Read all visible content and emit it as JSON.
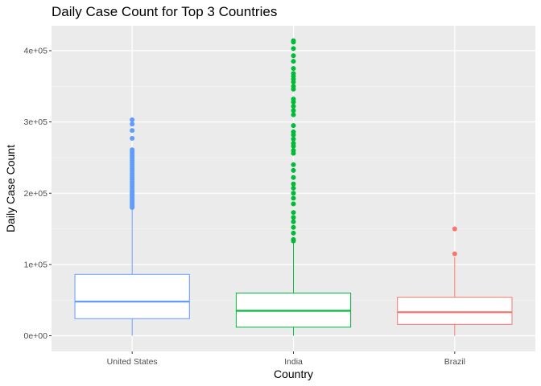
{
  "chart_data": {
    "type": "boxplot",
    "title": "Daily Case Count for Top 3 Countries",
    "xlabel": "Country",
    "ylabel": "Daily Case Count",
    "ylim": [
      -22000,
      435000
    ],
    "y_ticks": [
      0,
      100000,
      200000,
      300000,
      400000
    ],
    "y_tick_labels": [
      "0e+00",
      "1e+05",
      "2e+05",
      "3e+05",
      "4e+05"
    ],
    "grid": true,
    "legend": "none",
    "categories": [
      "United States",
      "India",
      "Brazil"
    ],
    "series": [
      {
        "category": "United States",
        "color": "#619cff",
        "min": 0,
        "q1": 24000,
        "median": 48000,
        "q3": 86000,
        "whisker_high": 178000,
        "outliers": [
          180000,
          182000,
          184000,
          186000,
          188000,
          190000,
          192000,
          194000,
          196000,
          198000,
          200000,
          202000,
          204000,
          207000,
          210000,
          213000,
          216000,
          219000,
          222000,
          225000,
          228000,
          231000,
          234000,
          237000,
          240000,
          243000,
          246000,
          249000,
          252000,
          255000,
          258000,
          261000,
          277000,
          288000,
          297000,
          303000
        ]
      },
      {
        "category": "India",
        "color": "#00ba38",
        "min": 0,
        "q1": 12000,
        "median": 35000,
        "q3": 60000,
        "whisker_high": 130000,
        "outliers": [
          133000,
          135000,
          144000,
          152000,
          160000,
          166000,
          173000,
          185000,
          193000,
          200000,
          207000,
          213000,
          222000,
          232000,
          240000,
          256000,
          260000,
          266000,
          270000,
          276000,
          282000,
          286000,
          295000,
          310000,
          316000,
          322000,
          328000,
          332000,
          346000,
          350000,
          356000,
          360000,
          364000,
          368000,
          375000,
          385000,
          393000,
          403000,
          412000,
          414000
        ]
      },
      {
        "category": "Brazil",
        "color": "#f8766d",
        "min": 0,
        "q1": 16000,
        "median": 33000,
        "q3": 54000,
        "whisker_high": 110000,
        "outliers": [
          115000,
          150000
        ]
      }
    ]
  }
}
